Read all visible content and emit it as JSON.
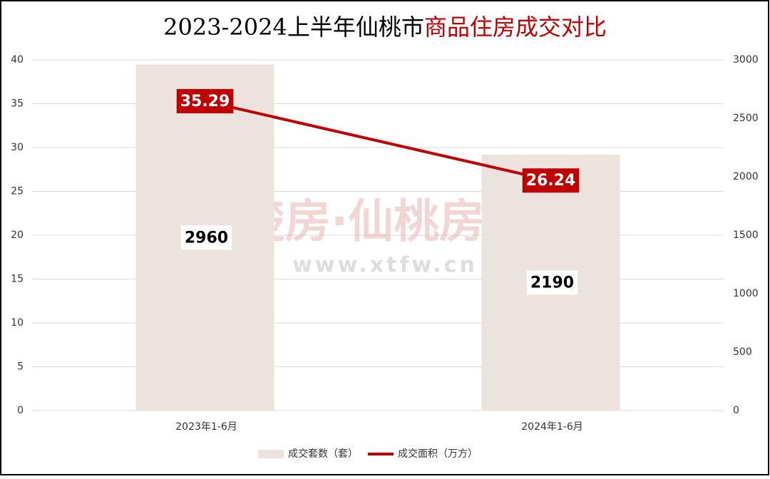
{
  "chart_data": {
    "type": "combo",
    "title_parts": [
      "2023-2024上半年仙桃市",
      "商品住房成交对比"
    ],
    "title_colors": [
      "#000000",
      "#c00000"
    ],
    "watermark": [
      "楚房·仙桃房网",
      "www.xtfw.cn"
    ],
    "categories": [
      "2023年1-6月",
      "2024年1-6月"
    ],
    "series": [
      {
        "name": "成交套数（套）",
        "type": "bar",
        "axis": "y2",
        "color": "#ede3de",
        "values": [
          2960,
          2190
        ]
      },
      {
        "name": "成交面积（万方）",
        "type": "line",
        "axis": "y",
        "color": "#c00000",
        "values": [
          35.29,
          26.24
        ]
      }
    ],
    "ylim": [
      0,
      40
    ],
    "yticks": [
      0,
      5,
      10,
      15,
      20,
      25,
      30,
      35,
      40
    ],
    "y2lim": [
      0,
      3000
    ],
    "y2ticks": [
      0,
      500,
      1000,
      1500,
      2000,
      2500,
      3000
    ],
    "grid": true,
    "legend": "bottom"
  }
}
